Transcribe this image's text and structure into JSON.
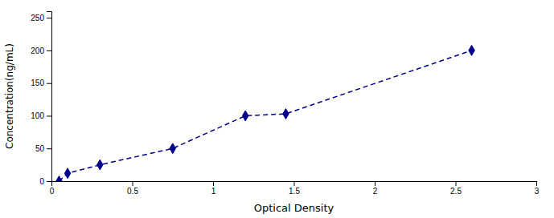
{
  "chart_data": {
    "type": "line",
    "x": [
      0.047,
      0.1,
      0.3,
      0.75,
      1.2,
      1.45,
      2.6
    ],
    "values": [
      0,
      12,
      25,
      50,
      100,
      103,
      200
    ],
    "color": "#00008B",
    "marker": "diamond",
    "line_style": "dashed",
    "xlabel": "Optical Density",
    "ylabel": "Concentration(ng/mL)",
    "xlim": [
      0,
      3
    ],
    "ylim": [
      0,
      260
    ],
    "xticks": [
      0,
      0.5,
      1,
      1.5,
      2,
      2.5,
      3
    ],
    "yticks": [
      0,
      50,
      100,
      150,
      200,
      250
    ]
  }
}
